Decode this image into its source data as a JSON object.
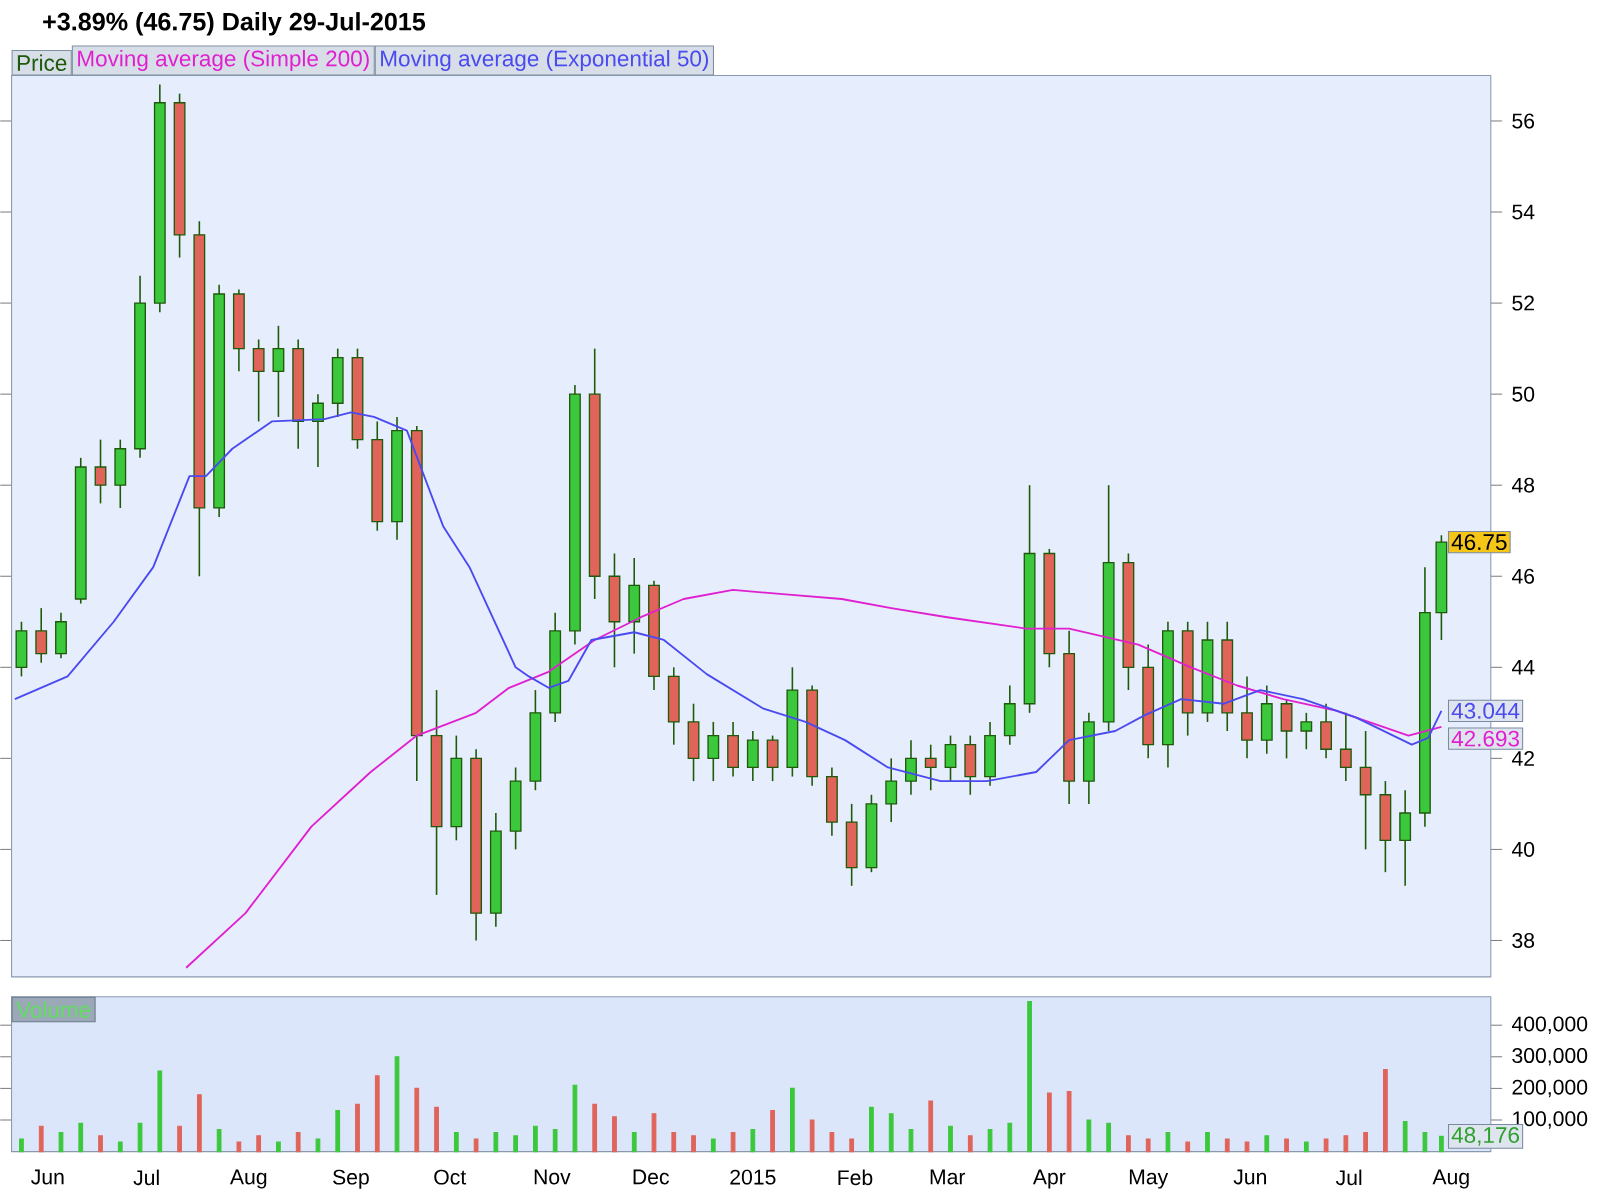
{
  "chart_data": [
    {
      "type": "candlestick",
      "title": "+3.89% (46.75)   Daily   29-Jul-2015",
      "xlim": [
        "2014-05-21",
        "2015-08-13"
      ],
      "ylim": [
        37.2,
        57.0
      ],
      "yticks": [
        38,
        40,
        42,
        44,
        46,
        48,
        50,
        52,
        54,
        56
      ],
      "xticks": [
        {
          "value": "2014-06-01",
          "label": null
        },
        {
          "value": "2014-07-01",
          "label": null
        },
        {
          "value": "2014-08-01",
          "label": null
        },
        {
          "value": "2014-09-01",
          "label": null
        },
        {
          "value": "2014-10-01",
          "label": null
        },
        {
          "value": "2014-11-01",
          "label": null
        },
        {
          "value": "2014-12-01",
          "label": null
        },
        {
          "value": "2015-01-01",
          "label": null
        },
        {
          "value": "2015-02-01",
          "label": null
        },
        {
          "value": "2015-03-01",
          "label": null
        },
        {
          "value": "2015-04-01",
          "label": null
        },
        {
          "value": "2015-05-01",
          "label": null
        },
        {
          "value": "2015-06-01",
          "label": null
        },
        {
          "value": "2015-07-01",
          "label": null
        },
        {
          "value": "2015-08-01",
          "label": null
        }
      ],
      "tick_labels": "y",
      "legend": "top left",
      "annotations": [
        {
          "text": "46.75",
          "x": "2015-07-29",
          "y": 46.75
        }
      ],
      "series": [
        {
          "name": "Price",
          "type": "candlestick",
          "color": "#1e5a0a",
          "x": [
            "2014-05-24",
            "2014-05-30",
            "2014-06-05",
            "2014-06-11",
            "2014-06-17",
            "2014-06-23",
            "2014-06-29",
            "2014-07-05",
            "2014-07-11",
            "2014-07-17",
            "2014-07-23",
            "2014-07-29",
            "2014-08-04",
            "2014-08-10",
            "2014-08-16",
            "2014-08-22",
            "2014-08-28",
            "2014-09-03",
            "2014-09-09",
            "2014-09-15",
            "2014-09-21",
            "2014-09-27",
            "2014-10-03",
            "2014-10-09",
            "2014-10-15",
            "2014-10-21",
            "2014-10-27",
            "2014-11-02",
            "2014-11-08",
            "2014-11-14",
            "2014-11-20",
            "2014-11-26",
            "2014-12-02",
            "2014-12-08",
            "2014-12-14",
            "2014-12-20",
            "2014-12-26",
            "2015-01-01",
            "2015-01-07",
            "2015-01-13",
            "2015-01-19",
            "2015-01-25",
            "2015-01-31",
            "2015-02-06",
            "2015-02-12",
            "2015-02-18",
            "2015-02-24",
            "2015-03-02",
            "2015-03-08",
            "2015-03-14",
            "2015-03-20",
            "2015-03-26",
            "2015-04-01",
            "2015-04-07",
            "2015-04-13",
            "2015-04-19",
            "2015-04-25",
            "2015-05-01",
            "2015-05-07",
            "2015-05-13",
            "2015-05-19",
            "2015-05-25",
            "2015-05-31",
            "2015-06-06",
            "2015-06-12",
            "2015-06-18",
            "2015-06-24",
            "2015-06-30",
            "2015-07-06",
            "2015-07-12",
            "2015-07-18",
            "2015-07-24",
            "2015-07-29"
          ],
          "ohlc": [
            [
              44.0,
              45.0,
              43.8,
              44.8
            ],
            [
              44.8,
              45.3,
              44.1,
              44.3
            ],
            [
              44.3,
              45.2,
              44.2,
              45.0
            ],
            [
              45.5,
              48.6,
              45.4,
              48.4
            ],
            [
              48.4,
              49.0,
              47.6,
              48.0
            ],
            [
              48.0,
              49.0,
              47.5,
              48.8
            ],
            [
              48.8,
              52.6,
              48.6,
              52.0
            ],
            [
              52.0,
              56.8,
              51.8,
              56.4
            ],
            [
              56.4,
              56.6,
              53.0,
              53.5
            ],
            [
              53.5,
              53.8,
              46.0,
              47.5
            ],
            [
              47.5,
              52.4,
              47.3,
              52.2
            ],
            [
              52.2,
              52.3,
              50.5,
              51.0
            ],
            [
              51.0,
              51.2,
              49.4,
              50.5
            ],
            [
              50.5,
              51.5,
              49.5,
              51.0
            ],
            [
              51.0,
              51.2,
              48.8,
              49.4
            ],
            [
              49.4,
              50.0,
              48.4,
              49.8
            ],
            [
              49.8,
              51.0,
              49.5,
              50.8
            ],
            [
              50.8,
              51.0,
              48.8,
              49.0
            ],
            [
              49.0,
              49.4,
              47.0,
              47.2
            ],
            [
              47.2,
              49.5,
              46.8,
              49.2
            ],
            [
              49.2,
              49.3,
              41.5,
              42.5
            ],
            [
              42.5,
              43.5,
              39.0,
              40.5
            ],
            [
              40.5,
              42.5,
              40.2,
              42.0
            ],
            [
              42.0,
              42.2,
              38.0,
              38.6
            ],
            [
              38.6,
              40.8,
              38.3,
              40.4
            ],
            [
              40.4,
              41.8,
              40.0,
              41.5
            ],
            [
              41.5,
              43.5,
              41.3,
              43.0
            ],
            [
              43.0,
              45.2,
              42.8,
              44.8
            ],
            [
              44.8,
              50.2,
              44.5,
              50.0
            ],
            [
              50.0,
              51.0,
              45.5,
              46.0
            ],
            [
              46.0,
              46.5,
              44.0,
              45.0
            ],
            [
              45.0,
              46.4,
              44.3,
              45.8
            ],
            [
              45.8,
              45.9,
              43.5,
              43.8
            ],
            [
              43.8,
              44.0,
              42.3,
              42.8
            ],
            [
              42.8,
              43.2,
              41.5,
              42.0
            ],
            [
              42.0,
              42.8,
              41.5,
              42.5
            ],
            [
              42.5,
              42.8,
              41.6,
              41.8
            ],
            [
              41.8,
              42.6,
              41.5,
              42.4
            ],
            [
              42.4,
              42.5,
              41.5,
              41.8
            ],
            [
              41.8,
              44.0,
              41.6,
              43.5
            ],
            [
              43.5,
              43.6,
              41.4,
              41.6
            ],
            [
              41.6,
              41.8,
              40.3,
              40.6
            ],
            [
              40.6,
              41.0,
              39.2,
              39.6
            ],
            [
              39.6,
              41.2,
              39.5,
              41.0
            ],
            [
              41.0,
              42.0,
              40.6,
              41.5
            ],
            [
              41.5,
              42.4,
              41.2,
              42.0
            ],
            [
              42.0,
              42.3,
              41.3,
              41.8
            ],
            [
              41.8,
              42.5,
              41.5,
              42.3
            ],
            [
              42.3,
              42.5,
              41.2,
              41.6
            ],
            [
              41.6,
              42.8,
              41.4,
              42.5
            ],
            [
              42.5,
              43.6,
              42.3,
              43.2
            ],
            [
              43.2,
              48.0,
              43.0,
              46.5
            ],
            [
              46.5,
              46.6,
              44.0,
              44.3
            ],
            [
              44.3,
              44.8,
              41.0,
              41.5
            ],
            [
              41.5,
              43.0,
              41.0,
              42.8
            ],
            [
              42.8,
              48.0,
              42.6,
              46.3
            ],
            [
              46.3,
              46.5,
              43.5,
              44.0
            ],
            [
              44.0,
              44.5,
              42.0,
              42.3
            ],
            [
              42.3,
              45.0,
              41.8,
              44.8
            ],
            [
              44.8,
              45.0,
              42.5,
              43.0
            ],
            [
              43.0,
              45.0,
              42.8,
              44.6
            ],
            [
              44.6,
              45.0,
              42.6,
              43.0
            ],
            [
              43.0,
              43.8,
              42.0,
              42.4
            ],
            [
              42.4,
              43.6,
              42.1,
              43.2
            ],
            [
              43.2,
              43.3,
              42.0,
              42.6
            ],
            [
              42.6,
              43.0,
              42.2,
              42.8
            ],
            [
              42.8,
              43.2,
              42.0,
              42.2
            ],
            [
              42.2,
              43.0,
              41.5,
              41.8
            ],
            [
              41.8,
              42.6,
              40.0,
              41.2
            ],
            [
              41.2,
              41.5,
              39.5,
              40.2
            ],
            [
              40.2,
              41.3,
              39.2,
              40.8
            ],
            [
              40.8,
              46.2,
              40.5,
              45.2
            ],
            [
              45.2,
              46.9,
              44.6,
              46.75
            ]
          ],
          "colors": [
            "#3cc83c",
            "#e0645a",
            "#3cc83c",
            "#3cc83c",
            "#e0645a",
            "#3cc83c",
            "#3cc83c",
            "#3cc83c",
            "#e0645a",
            "#e0645a",
            "#3cc83c",
            "#e0645a",
            "#e0645a",
            "#3cc83c",
            "#e0645a",
            "#3cc83c",
            "#3cc83c",
            "#e0645a",
            "#e0645a",
            "#3cc83c",
            "#e0645a",
            "#e0645a",
            "#3cc83c",
            "#e0645a",
            "#3cc83c",
            "#3cc83c",
            "#3cc83c",
            "#3cc83c",
            "#3cc83c",
            "#e0645a",
            "#e0645a",
            "#3cc83c",
            "#e0645a",
            "#e0645a",
            "#e0645a",
            "#3cc83c",
            "#e0645a",
            "#3cc83c",
            "#e0645a",
            "#3cc83c",
            "#e0645a",
            "#e0645a",
            "#e0645a",
            "#3cc83c",
            "#3cc83c",
            "#3cc83c",
            "#e0645a",
            "#3cc83c",
            "#e0645a",
            "#3cc83c",
            "#3cc83c",
            "#3cc83c",
            "#e0645a",
            "#e0645a",
            "#3cc83c",
            "#3cc83c",
            "#e0645a",
            "#e0645a",
            "#3cc83c",
            "#e0645a",
            "#3cc83c",
            "#e0645a",
            "#e0645a",
            "#3cc83c",
            "#e0645a",
            "#3cc83c",
            "#e0645a",
            "#e0645a",
            "#e0645a",
            "#e0645a",
            "#3cc83c",
            "#3cc83c",
            "#3cc83c"
          ]
        },
        {
          "name": "Moving average (Simple 200)",
          "type": "line",
          "color": "#e020d0",
          "x": [
            "2014-07-13",
            "2014-07-31",
            "2014-08-20",
            "2014-09-07",
            "2014-09-21",
            "2014-10-09",
            "2014-10-19",
            "2014-10-31",
            "2014-11-14",
            "2014-11-28",
            "2014-12-11",
            "2014-12-26",
            "2015-01-11",
            "2015-01-28",
            "2015-02-12",
            "2015-03-01",
            "2015-03-25",
            "2015-04-07",
            "2015-04-28",
            "2015-05-14",
            "2015-05-28",
            "2015-06-11",
            "2015-06-27",
            "2015-07-19",
            "2015-07-29"
          ],
          "values": [
            37.4,
            38.6,
            40.5,
            41.7,
            42.5,
            43.0,
            43.55,
            43.9,
            44.6,
            45.1,
            45.5,
            45.7,
            45.6,
            45.5,
            45.3,
            45.1,
            44.85,
            44.85,
            44.5,
            44.0,
            43.6,
            43.3,
            43.05,
            42.5,
            42.693
          ],
          "value_labels": [
            null,
            null,
            null,
            null,
            null,
            null,
            null,
            null,
            null,
            null,
            null,
            null,
            null,
            null,
            null,
            null,
            null,
            null,
            null,
            null,
            null,
            null,
            null,
            null,
            "42.693"
          ]
        },
        {
          "name": "Moving average (Exponential 50)",
          "type": "line",
          "color": "#4a4af0",
          "x": [
            "2014-05-22",
            "2014-06-07",
            "2014-06-21",
            "2014-07-03",
            "2014-07-14",
            "2014-07-19",
            "2014-07-27",
            "2014-08-08",
            "2014-08-24",
            "2014-09-01",
            "2014-09-08",
            "2014-09-18",
            "2014-09-29",
            "2014-10-07",
            "2014-10-21",
            "2014-10-25",
            "2014-10-31",
            "2014-11-06",
            "2014-11-13",
            "2014-11-26",
            "2014-12-05",
            "2014-12-18",
            "2015-01-04",
            "2015-01-17",
            "2015-01-29",
            "2015-02-11",
            "2015-02-27",
            "2015-03-13",
            "2015-03-28",
            "2015-04-07",
            "2015-04-21",
            "2015-04-30",
            "2015-05-11",
            "2015-05-24",
            "2015-06-04",
            "2015-06-17",
            "2015-07-03",
            "2015-07-20",
            "2015-07-25",
            "2015-07-29"
          ],
          "values": [
            43.3,
            43.8,
            45.0,
            46.2,
            48.2,
            48.2,
            48.8,
            49.4,
            49.45,
            49.6,
            49.5,
            49.2,
            47.1,
            46.2,
            44.0,
            43.8,
            43.55,
            43.7,
            44.6,
            44.77,
            44.6,
            43.85,
            43.1,
            42.8,
            42.4,
            41.8,
            41.5,
            41.5,
            41.7,
            42.4,
            42.6,
            42.95,
            43.3,
            43.2,
            43.5,
            43.3,
            42.9,
            42.3,
            42.45,
            43.044
          ],
          "value_labels": [
            null,
            null,
            null,
            null,
            null,
            null,
            null,
            null,
            null,
            null,
            null,
            null,
            null,
            null,
            null,
            null,
            null,
            null,
            null,
            null,
            null,
            null,
            null,
            null,
            null,
            null,
            null,
            null,
            null,
            null,
            null,
            null,
            null,
            null,
            null,
            null,
            null,
            null,
            null,
            "43.044"
          ]
        }
      ]
    },
    {
      "type": "bar",
      "title": "Volume",
      "xlim": [
        "2014-05-21",
        "2015-08-13"
      ],
      "ylim": [
        0,
        490000
      ],
      "yticks": [
        {
          "value": 100000,
          "label": "100,000"
        },
        {
          "value": 200000,
          "label": "200,000"
        },
        {
          "value": 300000,
          "label": "300,000"
        },
        {
          "value": 400000,
          "label": "400,000"
        }
      ],
      "xticks": [
        {
          "value": "2014-06-01",
          "label": "Jun"
        },
        {
          "value": "2014-07-01",
          "label": "Jul"
        },
        {
          "value": "2014-08-01",
          "label": "Aug"
        },
        {
          "value": "2014-09-01",
          "label": "Sep"
        },
        {
          "value": "2014-10-01",
          "label": "Oct"
        },
        {
          "value": "2014-11-01",
          "label": "Nov"
        },
        {
          "value": "2014-12-01",
          "label": "Dec"
        },
        {
          "value": "2015-01-01",
          "label": "2015"
        },
        {
          "value": "2015-02-01",
          "label": "Feb"
        },
        {
          "value": "2015-03-01",
          "label": "Mar"
        },
        {
          "value": "2015-04-01",
          "label": "Apr"
        },
        {
          "value": "2015-05-01",
          "label": "May"
        },
        {
          "value": "2015-06-01",
          "label": "Jun"
        },
        {
          "value": "2015-07-01",
          "label": "Jul"
        },
        {
          "value": "2015-08-01",
          "label": "Aug"
        }
      ],
      "annotations": [
        {
          "text": "48,176",
          "x": "2015-07-29",
          "y": 48176
        }
      ],
      "x": [
        "2014-05-24",
        "2014-05-30",
        "2014-06-05",
        "2014-06-11",
        "2014-06-17",
        "2014-06-23",
        "2014-06-29",
        "2014-07-05",
        "2014-07-11",
        "2014-07-17",
        "2014-07-23",
        "2014-07-29",
        "2014-08-04",
        "2014-08-10",
        "2014-08-16",
        "2014-08-22",
        "2014-08-28",
        "2014-09-03",
        "2014-09-09",
        "2014-09-15",
        "2014-09-21",
        "2014-09-27",
        "2014-10-03",
        "2014-10-09",
        "2014-10-15",
        "2014-10-21",
        "2014-10-27",
        "2014-11-02",
        "2014-11-08",
        "2014-11-14",
        "2014-11-20",
        "2014-11-26",
        "2014-12-02",
        "2014-12-08",
        "2014-12-14",
        "2014-12-20",
        "2014-12-26",
        "2015-01-01",
        "2015-01-07",
        "2015-01-13",
        "2015-01-19",
        "2015-01-25",
        "2015-01-31",
        "2015-02-06",
        "2015-02-12",
        "2015-02-18",
        "2015-02-24",
        "2015-03-02",
        "2015-03-08",
        "2015-03-14",
        "2015-03-20",
        "2015-03-26",
        "2015-04-01",
        "2015-04-07",
        "2015-04-13",
        "2015-04-19",
        "2015-04-25",
        "2015-05-01",
        "2015-05-07",
        "2015-05-13",
        "2015-05-19",
        "2015-05-25",
        "2015-05-31",
        "2015-06-06",
        "2015-06-12",
        "2015-06-18",
        "2015-06-24",
        "2015-06-30",
        "2015-07-06",
        "2015-07-12",
        "2015-07-18",
        "2015-07-24",
        "2015-07-29"
      ],
      "values": [
        40000,
        80000,
        60000,
        90000,
        50000,
        30000,
        90000,
        255000,
        80000,
        180000,
        70000,
        30000,
        50000,
        30000,
        60000,
        40000,
        130000,
        150000,
        240000,
        300000,
        200000,
        140000,
        60000,
        40000,
        60000,
        50000,
        80000,
        70000,
        210000,
        150000,
        110000,
        60000,
        120000,
        60000,
        50000,
        40000,
        60000,
        70000,
        130000,
        200000,
        100000,
        60000,
        40000,
        140000,
        120000,
        70000,
        160000,
        80000,
        50000,
        70000,
        90000,
        475000,
        185000,
        190000,
        100000,
        90000,
        50000,
        40000,
        60000,
        30000,
        60000,
        40000,
        30000,
        50000,
        40000,
        30000,
        40000,
        50000,
        60000,
        260000,
        95000,
        60000,
        48176
      ],
      "colors": [
        "#3cc83c",
        "#e0645a",
        "#3cc83c",
        "#3cc83c",
        "#e0645a",
        "#3cc83c",
        "#3cc83c",
        "#3cc83c",
        "#e0645a",
        "#e0645a",
        "#3cc83c",
        "#e0645a",
        "#e0645a",
        "#3cc83c",
        "#e0645a",
        "#3cc83c",
        "#3cc83c",
        "#e0645a",
        "#e0645a",
        "#3cc83c",
        "#e0645a",
        "#e0645a",
        "#3cc83c",
        "#e0645a",
        "#3cc83c",
        "#3cc83c",
        "#3cc83c",
        "#3cc83c",
        "#3cc83c",
        "#e0645a",
        "#e0645a",
        "#3cc83c",
        "#e0645a",
        "#e0645a",
        "#e0645a",
        "#3cc83c",
        "#e0645a",
        "#3cc83c",
        "#e0645a",
        "#3cc83c",
        "#e0645a",
        "#e0645a",
        "#e0645a",
        "#3cc83c",
        "#3cc83c",
        "#3cc83c",
        "#e0645a",
        "#3cc83c",
        "#e0645a",
        "#3cc83c",
        "#3cc83c",
        "#3cc83c",
        "#e0645a",
        "#e0645a",
        "#3cc83c",
        "#3cc83c",
        "#e0645a",
        "#e0645a",
        "#3cc83c",
        "#e0645a",
        "#3cc83c",
        "#e0645a",
        "#e0645a",
        "#3cc83c",
        "#e0645a",
        "#3cc83c",
        "#e0645a",
        "#e0645a",
        "#e0645a",
        "#e0645a",
        "#3cc83c",
        "#3cc83c",
        "#3cc83c"
      ]
    }
  ]
}
